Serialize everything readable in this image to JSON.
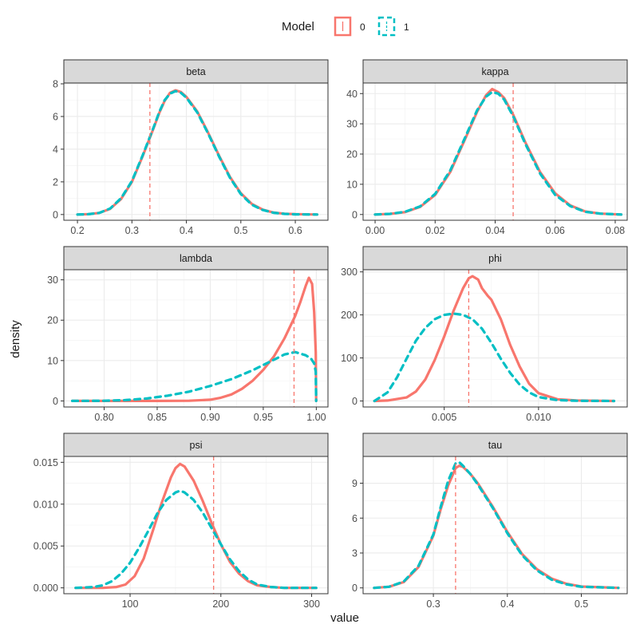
{
  "legend": {
    "title": "Model",
    "labels": [
      "0",
      "1"
    ],
    "colors": [
      "#F8766D",
      "#00BFC4"
    ],
    "line_types": [
      "solid",
      "dashed"
    ]
  },
  "axis_titles": {
    "x": "value",
    "y": "density"
  },
  "chart_data": [
    {
      "type": "line",
      "title": "beta",
      "xlim": [
        0.175,
        0.66
      ],
      "ylim": [
        -0.35,
        8.05
      ],
      "xticks": [
        {
          "v": 0.2,
          "l": "0.2"
        },
        {
          "v": 0.3,
          "l": "0.3"
        },
        {
          "v": 0.4,
          "l": "0.4"
        },
        {
          "v": 0.5,
          "l": "0.5"
        },
        {
          "v": 0.6,
          "l": "0.6"
        }
      ],
      "yticks": [
        {
          "v": 0,
          "l": "0"
        },
        {
          "v": 2,
          "l": "2"
        },
        {
          "v": 4,
          "l": "4"
        },
        {
          "v": 6,
          "l": "6"
        },
        {
          "v": 8,
          "l": "8"
        }
      ],
      "vline": 0.333,
      "series": [
        {
          "name": "0",
          "x": [
            0.2,
            0.22,
            0.24,
            0.26,
            0.28,
            0.3,
            0.32,
            0.34,
            0.35,
            0.36,
            0.37,
            0.38,
            0.39,
            0.4,
            0.42,
            0.44,
            0.46,
            0.48,
            0.5,
            0.52,
            0.54,
            0.56,
            0.58,
            0.6,
            0.64
          ],
          "y": [
            0,
            0.02,
            0.1,
            0.35,
            0.95,
            2.0,
            3.6,
            5.3,
            6.2,
            6.95,
            7.45,
            7.6,
            7.5,
            7.2,
            6.3,
            5.0,
            3.6,
            2.3,
            1.3,
            0.65,
            0.3,
            0.12,
            0.05,
            0.02,
            0
          ]
        },
        {
          "name": "1",
          "x": [
            0.2,
            0.22,
            0.24,
            0.26,
            0.28,
            0.3,
            0.32,
            0.34,
            0.35,
            0.36,
            0.37,
            0.38,
            0.39,
            0.4,
            0.42,
            0.44,
            0.46,
            0.48,
            0.5,
            0.52,
            0.54,
            0.56,
            0.58,
            0.6,
            0.64
          ],
          "y": [
            0,
            0.02,
            0.1,
            0.37,
            1.0,
            2.05,
            3.65,
            5.35,
            6.25,
            7.0,
            7.4,
            7.55,
            7.45,
            7.15,
            6.25,
            4.95,
            3.55,
            2.25,
            1.25,
            0.6,
            0.28,
            0.11,
            0.04,
            0.01,
            0
          ]
        }
      ]
    },
    {
      "type": "line",
      "title": "kappa",
      "xlim": [
        -0.004,
        0.084
      ],
      "ylim": [
        -1.9,
        43.5
      ],
      "xticks": [
        {
          "v": 0,
          "l": "0.00"
        },
        {
          "v": 0.02,
          "l": "0.02"
        },
        {
          "v": 0.04,
          "l": "0.04"
        },
        {
          "v": 0.06,
          "l": "0.06"
        },
        {
          "v": 0.08,
          "l": "0.08"
        }
      ],
      "yticks": [
        {
          "v": 0,
          "l": "0"
        },
        {
          "v": 10,
          "l": "10"
        },
        {
          "v": 20,
          "l": "20"
        },
        {
          "v": 30,
          "l": "30"
        },
        {
          "v": 40,
          "l": "40"
        }
      ],
      "vline": 0.046,
      "series": [
        {
          "name": "0",
          "x": [
            0,
            0.005,
            0.01,
            0.015,
            0.02,
            0.025,
            0.03,
            0.034,
            0.037,
            0.039,
            0.041,
            0.043,
            0.046,
            0.05,
            0.055,
            0.06,
            0.065,
            0.07,
            0.075,
            0.082
          ],
          "y": [
            0,
            0.2,
            0.8,
            2.5,
            6.5,
            14,
            25,
            34,
            39.5,
            41.5,
            40.5,
            38.5,
            33,
            24,
            14,
            7,
            3,
            1,
            0.3,
            0
          ]
        },
        {
          "name": "1",
          "x": [
            0,
            0.005,
            0.01,
            0.015,
            0.02,
            0.025,
            0.03,
            0.034,
            0.037,
            0.039,
            0.041,
            0.043,
            0.046,
            0.05,
            0.055,
            0.06,
            0.065,
            0.07,
            0.075,
            0.082
          ],
          "y": [
            0,
            0.2,
            0.9,
            2.7,
            6.8,
            14.5,
            25.5,
            34.5,
            39,
            40.5,
            40,
            38,
            32.5,
            23.5,
            13.5,
            6.5,
            2.8,
            0.9,
            0.3,
            0
          ]
        }
      ]
    },
    {
      "type": "line",
      "title": "lambda",
      "xlim": [
        0.762,
        1.011
      ],
      "ylim": [
        -1.5,
        32.5
      ],
      "xticks": [
        {
          "v": 0.8,
          "l": "0.80"
        },
        {
          "v": 0.85,
          "l": "0.85"
        },
        {
          "v": 0.9,
          "l": "0.90"
        },
        {
          "v": 0.95,
          "l": "0.95"
        },
        {
          "v": 1.0,
          "l": "1.00"
        }
      ],
      "yticks": [
        {
          "v": 0,
          "l": "0"
        },
        {
          "v": 10,
          "l": "10"
        },
        {
          "v": 20,
          "l": "20"
        },
        {
          "v": 30,
          "l": "30"
        }
      ],
      "vline": 0.979,
      "series": [
        {
          "name": "0",
          "x": [
            0.77,
            0.8,
            0.85,
            0.88,
            0.9,
            0.91,
            0.92,
            0.93,
            0.94,
            0.95,
            0.96,
            0.97,
            0.98,
            0.985,
            0.99,
            0.993,
            0.996,
            0.998,
            0.9995,
            0.9999
          ],
          "y": [
            0,
            0,
            0,
            0.05,
            0.3,
            0.8,
            1.6,
            3.0,
            5.0,
            7.7,
            11,
            15.5,
            21,
            24.5,
            28.5,
            30.5,
            29,
            22,
            12,
            0
          ]
        },
        {
          "name": "1",
          "x": [
            0.77,
            0.8,
            0.82,
            0.84,
            0.86,
            0.88,
            0.9,
            0.92,
            0.94,
            0.96,
            0.97,
            0.98,
            0.99,
            0.995,
            0.998,
            0.9995,
            0.9999
          ],
          "y": [
            0,
            0.05,
            0.2,
            0.6,
            1.3,
            2.3,
            3.7,
            5.4,
            7.6,
            10.2,
            11.5,
            12.1,
            11.3,
            10.5,
            9.3,
            7.2,
            0
          ]
        }
      ]
    },
    {
      "type": "line",
      "title": "phi",
      "xlim": [
        0.0007,
        0.0147
      ],
      "ylim": [
        -14,
        305
      ],
      "xticks": [
        {
          "v": 0.005,
          "l": "0.005"
        },
        {
          "v": 0.01,
          "l": "0.010"
        }
      ],
      "yticks": [
        {
          "v": 0,
          "l": "0"
        },
        {
          "v": 100,
          "l": "100"
        },
        {
          "v": 200,
          "l": "200"
        },
        {
          "v": 300,
          "l": "300"
        }
      ],
      "vline": 0.0063,
      "series": [
        {
          "name": "0",
          "x": [
            0.0013,
            0.002,
            0.003,
            0.0035,
            0.004,
            0.0045,
            0.005,
            0.0055,
            0.006,
            0.0063,
            0.0065,
            0.0068,
            0.007,
            0.0073,
            0.0075,
            0.008,
            0.0085,
            0.009,
            0.0095,
            0.01,
            0.011,
            0.012,
            0.014
          ],
          "y": [
            0,
            1,
            8,
            22,
            50,
            95,
            150,
            210,
            262,
            285,
            290,
            282,
            262,
            245,
            235,
            190,
            130,
            80,
            40,
            18,
            4,
            1,
            0
          ]
        },
        {
          "name": "1",
          "x": [
            0.0013,
            0.002,
            0.0025,
            0.003,
            0.0035,
            0.004,
            0.0045,
            0.005,
            0.0055,
            0.006,
            0.0065,
            0.007,
            0.0075,
            0.008,
            0.0085,
            0.009,
            0.0095,
            0.01,
            0.011,
            0.012,
            0.014
          ],
          "y": [
            0,
            20,
            55,
            98,
            140,
            170,
            190,
            200,
            203,
            200,
            190,
            168,
            135,
            98,
            65,
            38,
            20,
            9,
            2,
            0.5,
            0
          ]
        }
      ]
    },
    {
      "type": "line",
      "title": "psi",
      "xlim": [
        27,
        318
      ],
      "ylim": [
        -0.0007,
        0.0157
      ],
      "xticks": [
        {
          "v": 100,
          "l": "100"
        },
        {
          "v": 200,
          "l": "200"
        },
        {
          "v": 300,
          "l": "300"
        }
      ],
      "yticks": [
        {
          "v": 0,
          "l": "0.000"
        },
        {
          "v": 0.005,
          "l": "0.005"
        },
        {
          "v": 0.01,
          "l": "0.010"
        },
        {
          "v": 0.015,
          "l": "0.015"
        }
      ],
      "vline": 192,
      "series": [
        {
          "name": "0",
          "x": [
            40,
            70,
            85,
            95,
            105,
            115,
            125,
            135,
            145,
            150,
            155,
            160,
            170,
            180,
            190,
            200,
            210,
            220,
            230,
            240,
            255,
            270,
            305
          ],
          "y": [
            0,
            0,
            0.0001,
            0.0004,
            0.0014,
            0.0035,
            0.0068,
            0.0102,
            0.0132,
            0.0143,
            0.0148,
            0.0145,
            0.0128,
            0.0104,
            0.0077,
            0.0052,
            0.0031,
            0.0017,
            0.0008,
            0.0003,
            0.0001,
            0,
            0
          ]
        },
        {
          "name": "1",
          "x": [
            40,
            60,
            70,
            80,
            90,
            100,
            110,
            120,
            130,
            140,
            150,
            155,
            160,
            170,
            180,
            190,
            200,
            210,
            220,
            230,
            240,
            255,
            270,
            305
          ],
          "y": [
            0,
            0.0001,
            0.0003,
            0.0008,
            0.0017,
            0.003,
            0.0048,
            0.0068,
            0.0089,
            0.0105,
            0.0114,
            0.0116,
            0.0114,
            0.0105,
            0.009,
            0.0071,
            0.0052,
            0.0034,
            0.002,
            0.001,
            0.0004,
            0.0001,
            0,
            0
          ]
        }
      ]
    },
    {
      "type": "line",
      "title": "tau",
      "xlim": [
        0.205,
        0.562
      ],
      "ylim": [
        -0.5,
        11.3
      ],
      "xticks": [
        {
          "v": 0.3,
          "l": "0.3"
        },
        {
          "v": 0.4,
          "l": "0.4"
        },
        {
          "v": 0.5,
          "l": "0.5"
        }
      ],
      "yticks": [
        {
          "v": 0,
          "l": "0"
        },
        {
          "v": 3,
          "l": "3"
        },
        {
          "v": 6,
          "l": "6"
        },
        {
          "v": 9,
          "l": "9"
        }
      ],
      "vline": 0.33,
      "series": [
        {
          "name": "0",
          "x": [
            0.22,
            0.24,
            0.26,
            0.28,
            0.3,
            0.31,
            0.32,
            0.33,
            0.335,
            0.34,
            0.35,
            0.36,
            0.38,
            0.4,
            0.42,
            0.44,
            0.46,
            0.48,
            0.5,
            0.55
          ],
          "y": [
            0,
            0.1,
            0.5,
            1.8,
            4.5,
            6.8,
            8.8,
            10.3,
            10.5,
            10.4,
            9.8,
            9.0,
            7.0,
            4.8,
            2.9,
            1.6,
            0.8,
            0.35,
            0.12,
            0
          ]
        },
        {
          "name": "1",
          "x": [
            0.22,
            0.24,
            0.26,
            0.28,
            0.3,
            0.31,
            0.32,
            0.33,
            0.335,
            0.34,
            0.35,
            0.36,
            0.38,
            0.4,
            0.42,
            0.44,
            0.46,
            0.48,
            0.5,
            0.55
          ],
          "y": [
            0,
            0.1,
            0.55,
            1.9,
            4.6,
            7.0,
            9.2,
            10.7,
            10.8,
            10.5,
            9.8,
            8.9,
            6.9,
            4.7,
            2.8,
            1.5,
            0.7,
            0.3,
            0.1,
            0
          ]
        }
      ]
    }
  ]
}
